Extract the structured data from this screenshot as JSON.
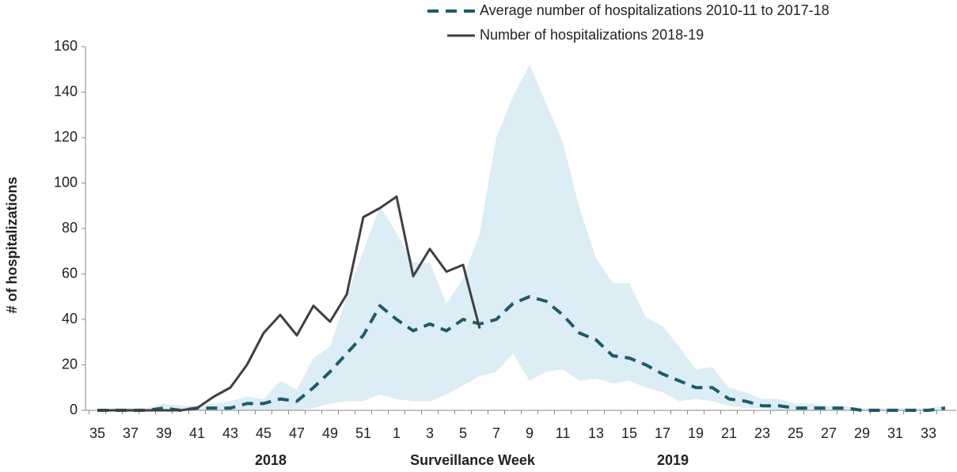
{
  "chart_data": {
    "type": "line",
    "y_label": "# of hospitalizations",
    "x_label": "Surveillance Week",
    "year_labels": [
      "2018",
      "2019"
    ],
    "categories": [
      "35",
      null,
      "37",
      null,
      "39",
      null,
      "41",
      null,
      "43",
      null,
      "45",
      null,
      "47",
      null,
      "49",
      null,
      "51",
      null,
      "1",
      null,
      "3",
      null,
      "5",
      null,
      "7",
      null,
      "9",
      null,
      "11",
      null,
      "13",
      null,
      "15",
      null,
      "17",
      null,
      "19",
      null,
      "21",
      null,
      "23",
      null,
      "25",
      null,
      "27",
      null,
      "29",
      null,
      "31",
      null,
      "33",
      null
    ],
    "ylim": [
      0,
      160
    ],
    "yticks": [
      0,
      20,
      40,
      60,
      80,
      100,
      120,
      140,
      160
    ],
    "band": {
      "color": "#dcedf5",
      "upper": [
        0,
        1,
        1,
        1,
        3,
        2,
        2,
        3,
        4,
        6,
        5,
        13,
        9,
        23,
        28,
        50,
        70,
        90,
        78,
        65,
        65,
        47,
        58,
        78,
        120,
        138,
        152,
        135,
        118,
        89,
        67,
        56,
        56,
        41,
        37,
        28,
        18,
        19,
        10,
        8,
        5,
        5,
        3,
        3,
        2,
        2,
        1,
        1,
        1,
        1,
        1,
        2
      ],
      "lower": [
        0,
        0,
        0,
        0,
        0,
        0,
        0,
        0,
        0,
        0,
        0,
        0,
        0,
        1,
        3,
        4,
        4,
        7,
        5,
        4,
        4,
        7,
        11,
        15,
        17,
        25,
        13,
        17,
        18,
        13,
        14,
        12,
        13,
        10,
        8,
        4,
        5,
        4,
        2,
        1,
        1,
        0,
        0,
        0,
        0,
        0,
        0,
        0,
        0,
        0,
        0,
        0
      ]
    },
    "series": [
      {
        "name": "Average number of hospitalizations 2010-11 to 2017-18",
        "color": "#1f5a6b",
        "dashed": true,
        "values": [
          0,
          0,
          0,
          0,
          1,
          0,
          1,
          1,
          1,
          3,
          3,
          5,
          4,
          10,
          17,
          25,
          33,
          46,
          40,
          35,
          38,
          35,
          40,
          38,
          40,
          47,
          50,
          48,
          42,
          34,
          31,
          24,
          23,
          20,
          16,
          13,
          10,
          10,
          5,
          4,
          2,
          2,
          1,
          1,
          1,
          1,
          0,
          0,
          0,
          0,
          0,
          1
        ]
      },
      {
        "name": "Number of hospitalizations 2018-19",
        "color": "#404040",
        "dashed": false,
        "values": [
          0,
          0,
          0,
          0,
          0,
          0,
          1,
          6,
          10,
          20,
          34,
          42,
          33,
          46,
          39,
          51,
          85,
          89,
          94,
          59,
          71,
          61,
          64,
          36,
          null,
          null,
          null,
          null,
          null,
          null,
          null,
          null,
          null,
          null,
          null,
          null,
          null,
          null,
          null,
          null,
          null,
          null,
          null,
          null,
          null,
          null,
          null,
          null,
          null,
          null,
          null,
          null
        ]
      }
    ]
  }
}
